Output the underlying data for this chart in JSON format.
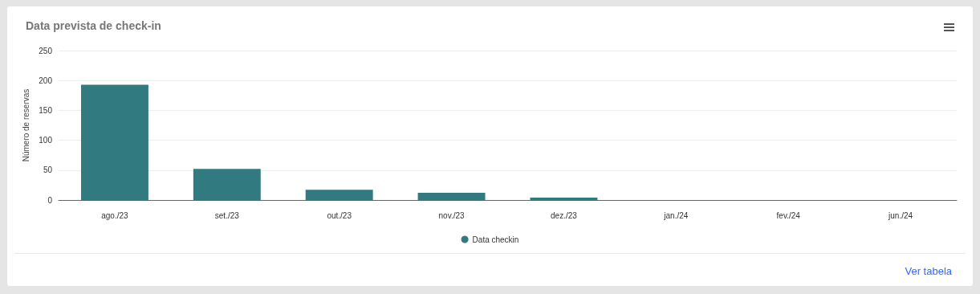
{
  "chart_data": {
    "type": "bar",
    "title": "Data prevista de check-in",
    "ylabel": "Número de reservas",
    "categories": [
      "ago./23",
      "set./23",
      "out./23",
      "nov./23",
      "dez./23",
      "jan./24",
      "fev./24",
      "jun./24"
    ],
    "series": [
      {
        "name": "Data checkin",
        "color": "#317a80",
        "values": [
          193,
          52,
          17,
          12,
          4,
          0,
          0,
          0
        ]
      }
    ],
    "ylim": [
      0,
      250
    ],
    "yticks": [
      0,
      50,
      100,
      150,
      200,
      250
    ],
    "grid": "y",
    "legend": "bottom",
    "annotations": [
      "Ver tabela"
    ]
  }
}
